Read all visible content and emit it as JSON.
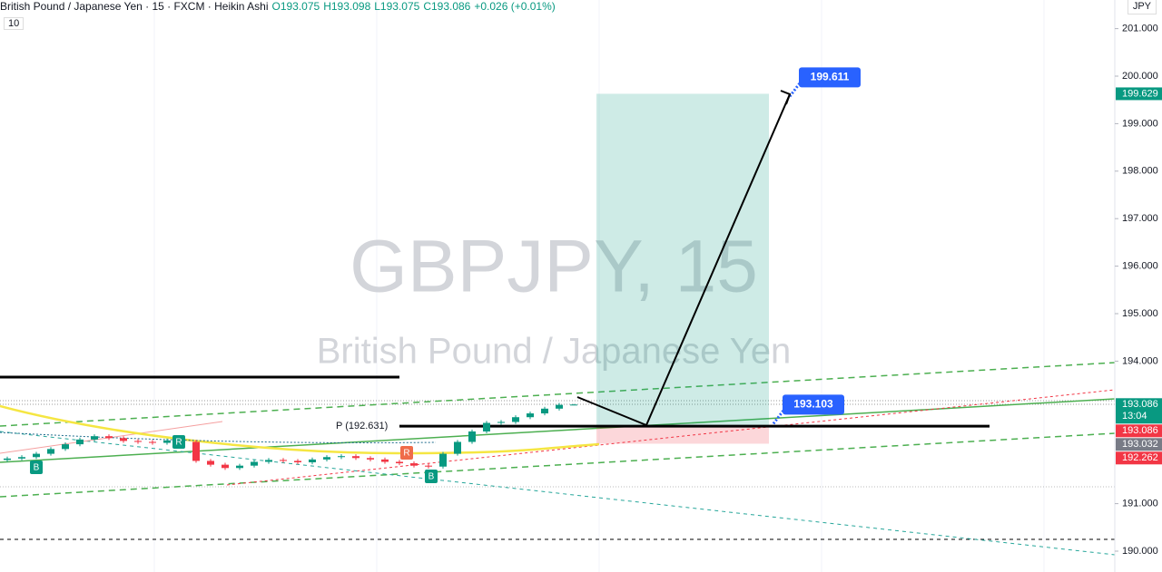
{
  "header": {
    "symbol": "British Pound / Japanese Yen · 15 · FXCM · Heikin Ashi",
    "ohlc": [
      "O193.075",
      "H193.098",
      "L193.075",
      "C193.086",
      "+0.026 (+0.01%)"
    ],
    "indicator": "10",
    "currency": "JPY"
  },
  "watermark": {
    "ticker": "GBPJPY, 15",
    "name": "British Pound / Japanese Yen"
  },
  "chart_data": {
    "type": "candlestick",
    "open": [
      191.92,
      191.95,
      191.98,
      192.05,
      192.15,
      192.25,
      192.35,
      192.42,
      192.38,
      192.32,
      192.3,
      192.28,
      192.33,
      192.3,
      191.9,
      191.82,
      191.75,
      191.8,
      191.88,
      191.92,
      191.9,
      191.87,
      191.93,
      191.98,
      192.0,
      191.96,
      191.93,
      191.88,
      191.85,
      191.8,
      191.78,
      192.05,
      192.3,
      192.52,
      192.7,
      192.72,
      192.82,
      192.9,
      193.0,
      193.08
    ],
    "high": [
      191.99,
      192.02,
      192.09,
      192.19,
      192.29,
      192.39,
      192.46,
      192.46,
      192.42,
      192.36,
      192.34,
      192.37,
      192.37,
      192.34,
      191.94,
      191.86,
      191.84,
      191.92,
      191.96,
      191.96,
      191.94,
      191.97,
      192.02,
      192.04,
      192.04,
      192.0,
      191.97,
      191.92,
      191.89,
      191.84,
      192.09,
      192.34,
      192.56,
      192.74,
      192.76,
      192.86,
      192.94,
      193.04,
      193.12,
      193.098
    ],
    "low": [
      191.88,
      191.91,
      191.94,
      192.01,
      192.11,
      192.21,
      192.31,
      192.34,
      192.28,
      192.26,
      192.24,
      192.24,
      192.26,
      191.86,
      191.78,
      191.71,
      191.71,
      191.76,
      191.84,
      191.86,
      191.83,
      191.83,
      191.89,
      191.94,
      191.92,
      191.89,
      191.84,
      191.81,
      191.76,
      191.74,
      191.74,
      192.01,
      192.26,
      192.48,
      192.66,
      192.68,
      192.78,
      192.86,
      192.96,
      193.075
    ],
    "close": [
      191.95,
      191.98,
      192.05,
      192.15,
      192.25,
      192.35,
      192.42,
      192.38,
      192.32,
      192.3,
      192.28,
      192.33,
      192.3,
      191.9,
      191.82,
      191.75,
      191.8,
      191.88,
      191.92,
      191.9,
      191.87,
      191.93,
      191.98,
      192.0,
      191.96,
      191.93,
      191.88,
      191.85,
      191.8,
      191.78,
      192.05,
      192.3,
      192.52,
      192.7,
      192.72,
      192.82,
      192.9,
      193.0,
      193.08,
      193.086
    ],
    "up_color": "#089981",
    "down_color": "#f23645",
    "ylim": [
      189.561,
      201.603
    ],
    "yticks": [
      {
        "value": 190,
        "label": "190.000"
      },
      {
        "value": 191,
        "label": "191.000"
      },
      {
        "value": 194,
        "label": "194.000"
      },
      {
        "value": 195,
        "label": "195.000"
      },
      {
        "value": 196,
        "label": "196.000"
      },
      {
        "value": 197,
        "label": "197.000"
      },
      {
        "value": 198,
        "label": "198.000"
      },
      {
        "value": 199,
        "label": "199.000"
      },
      {
        "value": 200,
        "label": "200.000"
      },
      {
        "value": 201,
        "label": "201.000"
      }
    ],
    "price_labels": [
      {
        "value": 199.629,
        "color": "#089981"
      },
      {
        "value": 193.086,
        "color": "#089981",
        "time": "13:04"
      },
      {
        "value": 193.086,
        "color": "#f23645"
      },
      {
        "value": 193.032,
        "color": "#787b86"
      },
      {
        "value": 192.262,
        "color": "#f23645"
      }
    ],
    "pivot": {
      "value": 192.631,
      "label": "P (192.631)"
    },
    "callouts": [
      199.611,
      193.103
    ],
    "signals": [
      "B",
      "R",
      "R",
      "B"
    ]
  }
}
